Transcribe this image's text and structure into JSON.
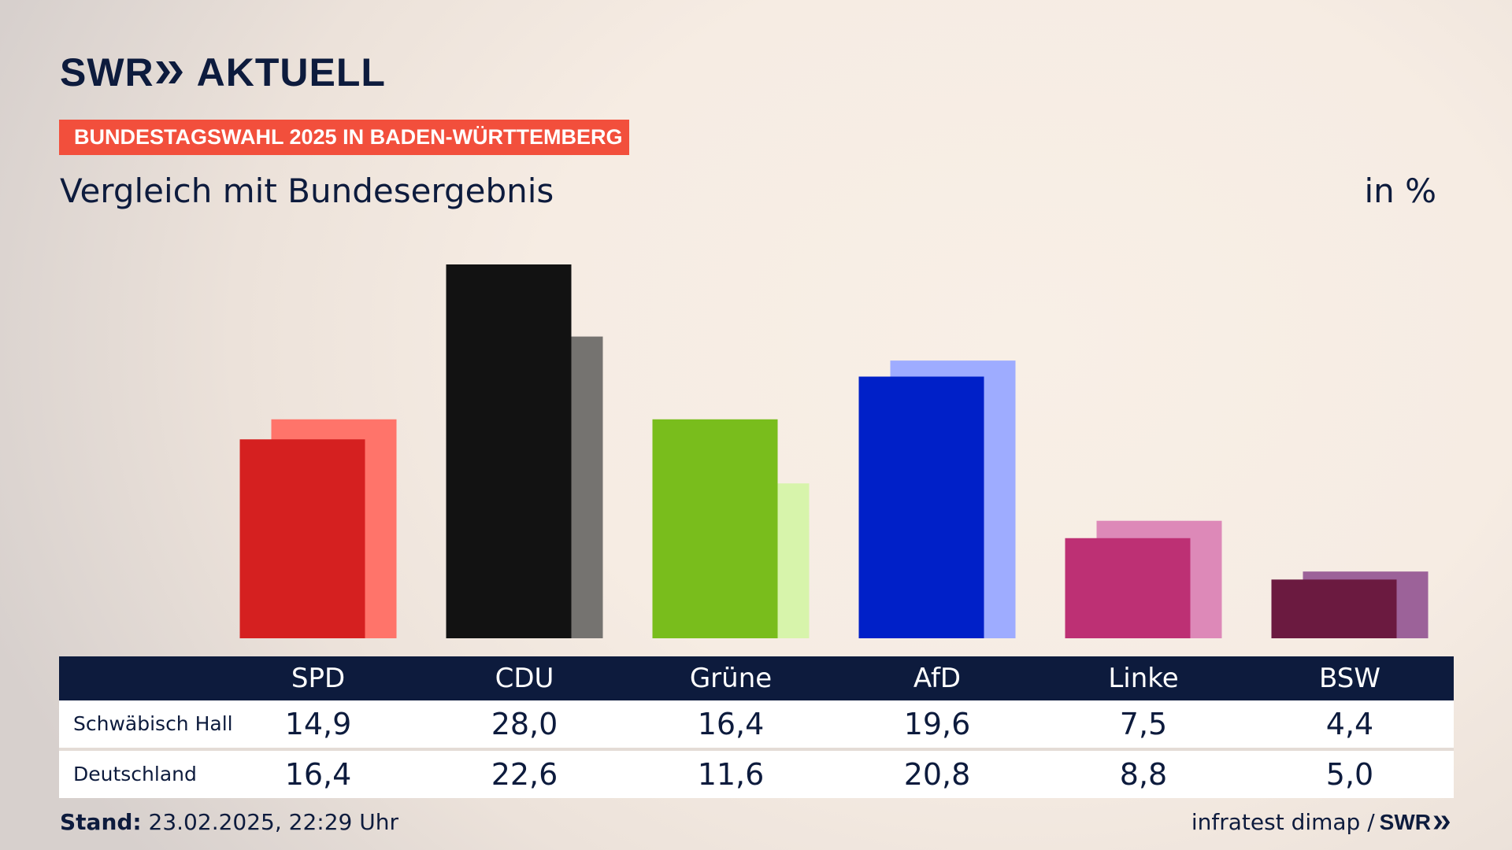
{
  "brand": {
    "logo_left": "SWR",
    "logo_right": "AKTUELL",
    "footer_logo": "SWR",
    "color": "#0d1b3d"
  },
  "banner": {
    "text": "BUNDESTAGSWAHL 2025 IN BADEN-WÜRTTEMBERG",
    "color": "#f24f3c"
  },
  "subtitle": "Vergleich mit Bundesergebnis",
  "unit": "in %",
  "chart_data": {
    "type": "bar",
    "categories": [
      "SPD",
      "CDU",
      "Grüne",
      "AfD",
      "Linke",
      "BSW"
    ],
    "series": [
      {
        "name": "Schwäbisch Hall",
        "values": [
          14.9,
          28.0,
          16.4,
          19.6,
          7.5,
          4.4
        ],
        "display": [
          "14,9",
          "28,0",
          "16,4",
          "19,6",
          "7,5",
          "4,4"
        ],
        "colors": [
          "#d52020",
          "#121212",
          "#79bd1c",
          "#0020c8",
          "#bd3074",
          "#6b1a40"
        ]
      },
      {
        "name": "Deutschland",
        "values": [
          16.4,
          22.6,
          11.6,
          20.8,
          8.8,
          5.0
        ],
        "display": [
          "16,4",
          "22,6",
          "11,6",
          "20,8",
          "8,8",
          "5,0"
        ],
        "colors": [
          "#ff746a",
          "#757370",
          "#d7f4ab",
          "#9eacff",
          "#dd89b8",
          "#9c6299"
        ]
      }
    ],
    "ylim": [
      0,
      28
    ]
  },
  "footer": {
    "stand_label": "Stand:",
    "stand_value": "23.02.2025, 22:29 Uhr",
    "source": "infratest dimap /"
  }
}
